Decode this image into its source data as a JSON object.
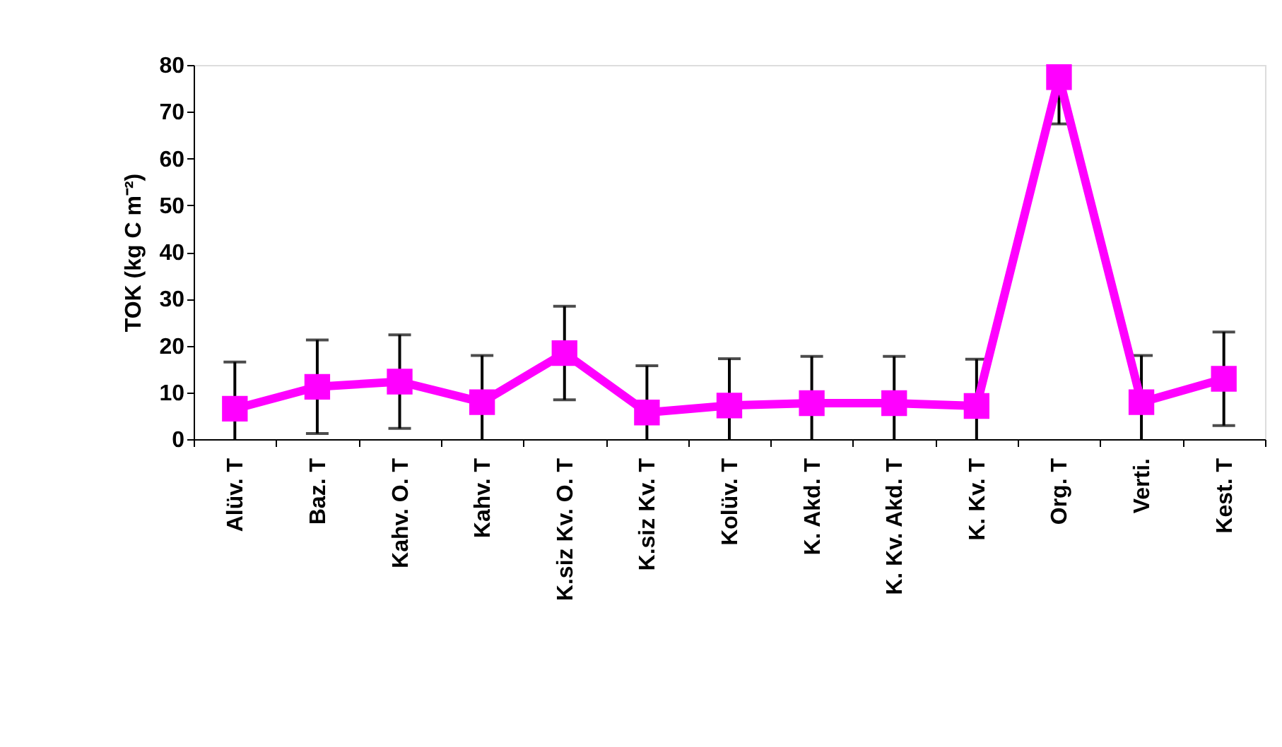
{
  "chart_data": {
    "type": "line",
    "ylabel": "TOK (kg C m⁻²)",
    "categories": [
      "Alüv. T",
      "Baz. T",
      "Kahv. O. T",
      "Kahv. T",
      "K.siz Kv. O. T",
      "K.siz Kv. T",
      "Kolüv. T",
      "K. Akd. T",
      "K. Kv. Akd. T",
      "K. Kv. T",
      "Org. T",
      "Verti.",
      "Kest. T"
    ],
    "series": [
      {
        "color": "#ff00ff",
        "values": [
          6.5,
          11.2,
          12.3,
          7.9,
          18.4,
          5.7,
          7.2,
          7.7,
          7.7,
          7.1,
          77.4,
          7.9,
          12.9
        ],
        "errors": [
          10,
          10,
          10,
          10,
          10,
          10,
          10,
          10,
          10,
          10,
          10,
          10,
          10
        ]
      }
    ],
    "marker": "square",
    "line_style": "solid",
    "ylim": [
      0,
      80
    ],
    "yticks": [
      0,
      10,
      20,
      30,
      40,
      50,
      60,
      70,
      80
    ],
    "grid": false
  }
}
